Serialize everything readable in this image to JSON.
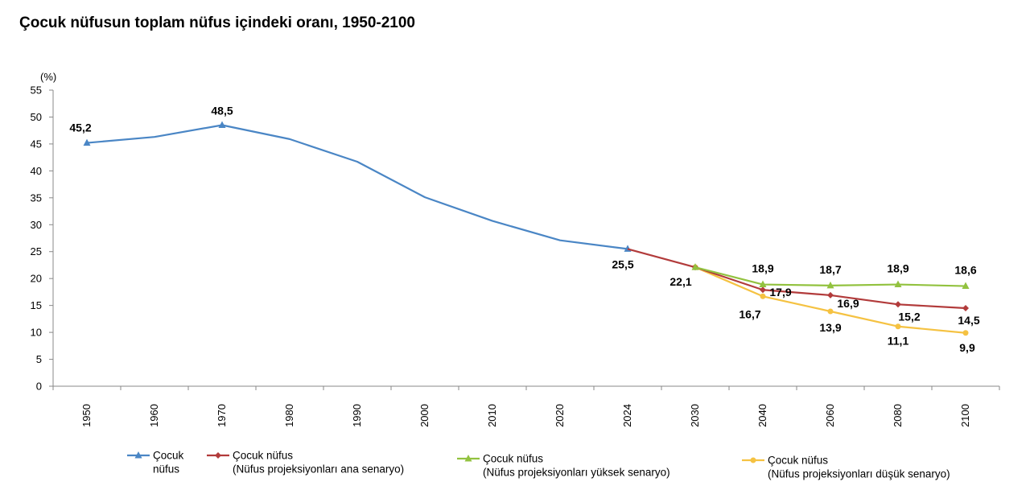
{
  "title": "Çocuk nüfusun toplam nüfus içindeki oranı, 1950-2100",
  "chart_data": {
    "type": "line",
    "ylabel": "(%)",
    "ylim": [
      0,
      55
    ],
    "yticks": [
      "0",
      "5",
      "10",
      "15",
      "20",
      "25",
      "30",
      "35",
      "40",
      "45",
      "50",
      "55"
    ],
    "categories": [
      "1950",
      "1960",
      "1970",
      "1980",
      "1990",
      "2000",
      "2010",
      "2020",
      "2024",
      "2030",
      "2040",
      "2060",
      "2080",
      "2100"
    ],
    "grid": false,
    "legend_position": "bottom",
    "series": [
      {
        "name": "Çocuk nüfus",
        "color": "#4a86c5",
        "marker": "triangle",
        "values": [
          45.2,
          46.3,
          48.5,
          45.9,
          41.7,
          35.1,
          30.7,
          27.1,
          25.5,
          null,
          null,
          null,
          null,
          null
        ],
        "labels": [
          "45,2",
          null,
          "48,5",
          null,
          null,
          null,
          null,
          null,
          "25,5",
          null,
          null,
          null,
          null,
          null
        ]
      },
      {
        "name": "Çocuk nüfus (Nüfus projeksiyonları ana senaryo)",
        "color": "#b23b3b",
        "marker": "diamond",
        "values": [
          null,
          null,
          null,
          null,
          null,
          null,
          null,
          null,
          25.5,
          22.1,
          17.9,
          16.9,
          15.2,
          14.5
        ],
        "labels": [
          null,
          null,
          null,
          null,
          null,
          null,
          null,
          null,
          null,
          "22,1",
          "17,9",
          "16,9",
          "15,2",
          "14,5"
        ]
      },
      {
        "name": "Çocuk nüfus (Nüfus projeksiyonları yüksek senaryo)",
        "color": "#92c23f",
        "marker": "triangle",
        "values": [
          null,
          null,
          null,
          null,
          null,
          null,
          null,
          null,
          null,
          22.1,
          18.9,
          18.7,
          18.9,
          18.6
        ],
        "labels": [
          null,
          null,
          null,
          null,
          null,
          null,
          null,
          null,
          null,
          null,
          "18,9",
          "18,7",
          "18,9",
          "18,6"
        ]
      },
      {
        "name": "Çocuk nüfus (Nüfus projeksiyonları düşük senaryo)",
        "color": "#f5c242",
        "marker": "circle",
        "values": [
          null,
          null,
          null,
          null,
          null,
          null,
          null,
          null,
          null,
          22.1,
          16.7,
          13.9,
          11.1,
          9.9
        ],
        "labels": [
          null,
          null,
          null,
          null,
          null,
          null,
          null,
          null,
          null,
          null,
          "16,7",
          "13,9",
          "11,1",
          "9,9"
        ]
      }
    ]
  },
  "legend": [
    {
      "line1": "Çocuk",
      "line2": "nüfus"
    },
    {
      "line1": "Çocuk nüfus",
      "line2": "(Nüfus projeksiyonları ana senaryo)"
    },
    {
      "line1": "Çocuk nüfus",
      "line2": "(Nüfus projeksiyonları yüksek senaryo)"
    },
    {
      "line1": "Çocuk nüfus",
      "line2": "(Nüfus projeksiyonları düşük senaryo)"
    }
  ]
}
